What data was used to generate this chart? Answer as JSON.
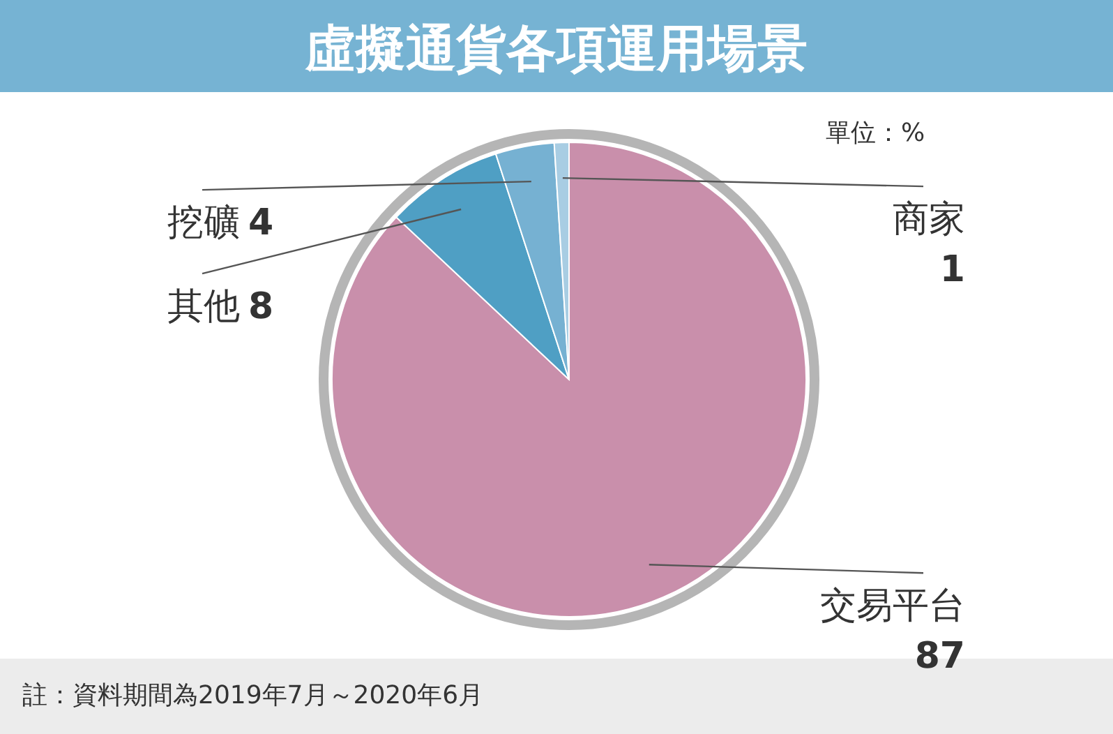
{
  "chart_data": {
    "type": "pie",
    "title": "虛擬通貨各項運用場景",
    "categories": [
      "交易平台",
      "其他",
      "挖礦",
      "商家"
    ],
    "values": [
      87,
      8,
      4,
      1
    ],
    "colors": [
      "#c98fab",
      "#4f9fc4",
      "#76b1d2",
      "#a8cde3"
    ],
    "data_labels": true,
    "annotations": [
      "單位：%",
      "註：資料期間為2019年7月～2020年6月"
    ]
  }
}
